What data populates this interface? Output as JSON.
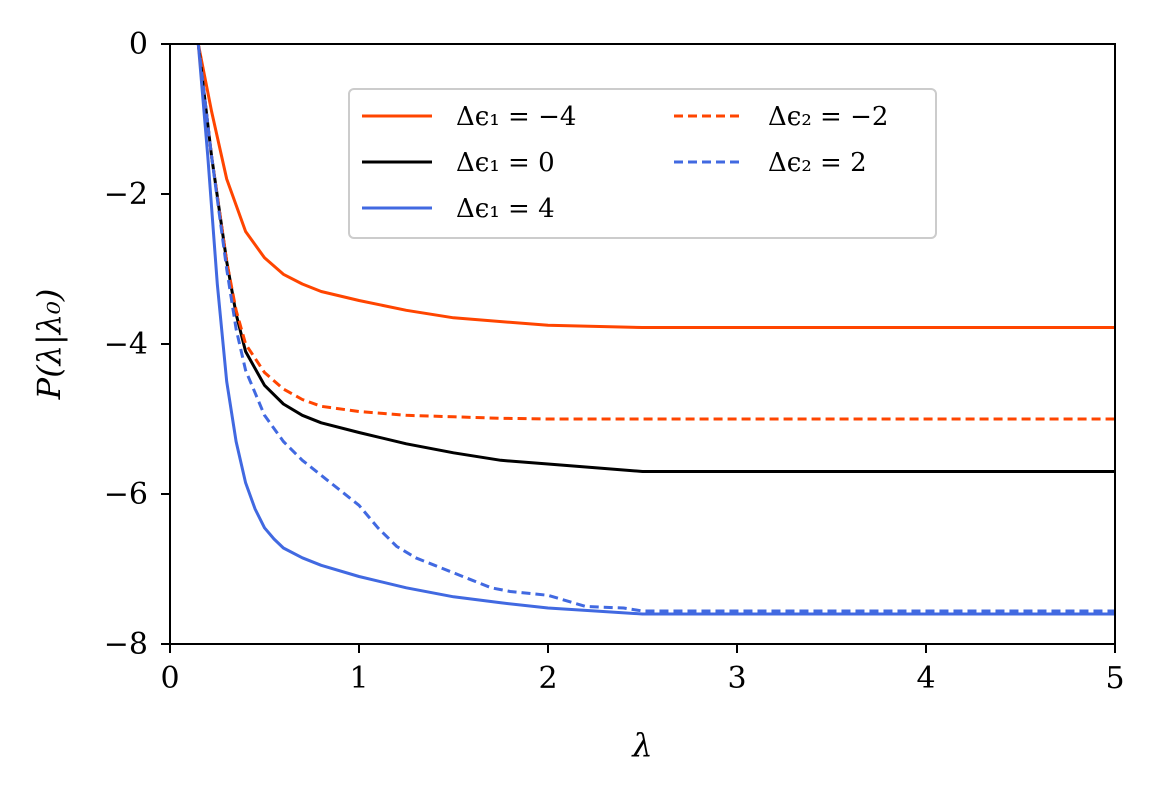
{
  "chart_data": {
    "type": "line",
    "xlabel": "λ",
    "ylabel": "P(λ|λ₀)",
    "xlim": [
      0,
      5
    ],
    "ylim": [
      -8,
      0
    ],
    "xticks": [
      0,
      1,
      2,
      3,
      4,
      5
    ],
    "yticks": [
      0,
      -2,
      -4,
      -6,
      -8
    ],
    "xtick_labels": [
      "0",
      "1",
      "2",
      "3",
      "4",
      "5"
    ],
    "ytick_labels": [
      "0",
      "−2",
      "−4",
      "−6",
      "−8"
    ],
    "grid": false,
    "legend": "top-center, two columns",
    "series": [
      {
        "name": "Δϵ₁ = −4",
        "color": "#ff4500",
        "dash": "solid",
        "x": [
          0.15,
          0.22,
          0.3,
          0.4,
          0.5,
          0.6,
          0.7,
          0.8,
          1.0,
          1.25,
          1.5,
          2.0,
          2.5,
          3.0,
          4.0,
          5.0
        ],
        "y": [
          0.0,
          -0.9,
          -1.8,
          -2.5,
          -2.85,
          -3.07,
          -3.2,
          -3.3,
          -3.42,
          -3.55,
          -3.65,
          -3.75,
          -3.78,
          -3.78,
          -3.78,
          -3.78
        ]
      },
      {
        "name": "Δϵ₁ = 0",
        "color": "#000000",
        "dash": "solid",
        "x": [
          0.15,
          0.22,
          0.3,
          0.35,
          0.4,
          0.5,
          0.6,
          0.7,
          0.8,
          1.0,
          1.25,
          1.5,
          1.75,
          2.0,
          2.25,
          2.5,
          3.0,
          4.0,
          5.0
        ],
        "y": [
          0.0,
          -1.5,
          -2.9,
          -3.6,
          -4.1,
          -4.55,
          -4.8,
          -4.95,
          -5.05,
          -5.18,
          -5.33,
          -5.45,
          -5.55,
          -5.6,
          -5.65,
          -5.7,
          -5.7,
          -5.7,
          -5.7
        ]
      },
      {
        "name": "Δϵ₁ = 4",
        "color": "#4169e1",
        "dash": "solid",
        "x": [
          0.15,
          0.2,
          0.25,
          0.3,
          0.35,
          0.4,
          0.45,
          0.5,
          0.55,
          0.6,
          0.7,
          0.8,
          1.0,
          1.25,
          1.5,
          1.75,
          2.0,
          2.25,
          2.5,
          3.0,
          4.0,
          5.0
        ],
        "y": [
          0.0,
          -1.5,
          -3.2,
          -4.5,
          -5.3,
          -5.85,
          -6.2,
          -6.45,
          -6.6,
          -6.72,
          -6.85,
          -6.95,
          -7.1,
          -7.25,
          -7.37,
          -7.45,
          -7.52,
          -7.56,
          -7.6,
          -7.6,
          -7.6,
          -7.6
        ]
      },
      {
        "name": "Δϵ₂ = −2",
        "color": "#ff4500",
        "dash": "dashed",
        "x": [
          0.15,
          0.22,
          0.3,
          0.35,
          0.4,
          0.5,
          0.6,
          0.7,
          0.8,
          1.0,
          1.25,
          1.5,
          1.75,
          2.0,
          2.5,
          3.0,
          4.0,
          5.0
        ],
        "y": [
          0.0,
          -1.5,
          -2.9,
          -3.55,
          -4.0,
          -4.38,
          -4.6,
          -4.74,
          -4.83,
          -4.9,
          -4.95,
          -4.97,
          -4.99,
          -5.0,
          -5.0,
          -5.0,
          -5.0,
          -5.0
        ]
      },
      {
        "name": "Δϵ₂ = 2",
        "color": "#4169e1",
        "dash": "dashed",
        "x": [
          0.15,
          0.22,
          0.3,
          0.35,
          0.4,
          0.5,
          0.6,
          0.7,
          0.8,
          0.9,
          1.0,
          1.1,
          1.2,
          1.3,
          1.4,
          1.5,
          1.6,
          1.7,
          1.8,
          2.0,
          2.2,
          2.4,
          2.5,
          3.0,
          4.0,
          5.0
        ],
        "y": [
          0.0,
          -1.5,
          -3.0,
          -3.8,
          -4.35,
          -4.95,
          -5.3,
          -5.55,
          -5.75,
          -5.95,
          -6.15,
          -6.45,
          -6.7,
          -6.85,
          -6.95,
          -7.05,
          -7.15,
          -7.25,
          -7.3,
          -7.35,
          -7.5,
          -7.52,
          -7.56,
          -7.56,
          -7.56,
          -7.56
        ]
      }
    ]
  }
}
